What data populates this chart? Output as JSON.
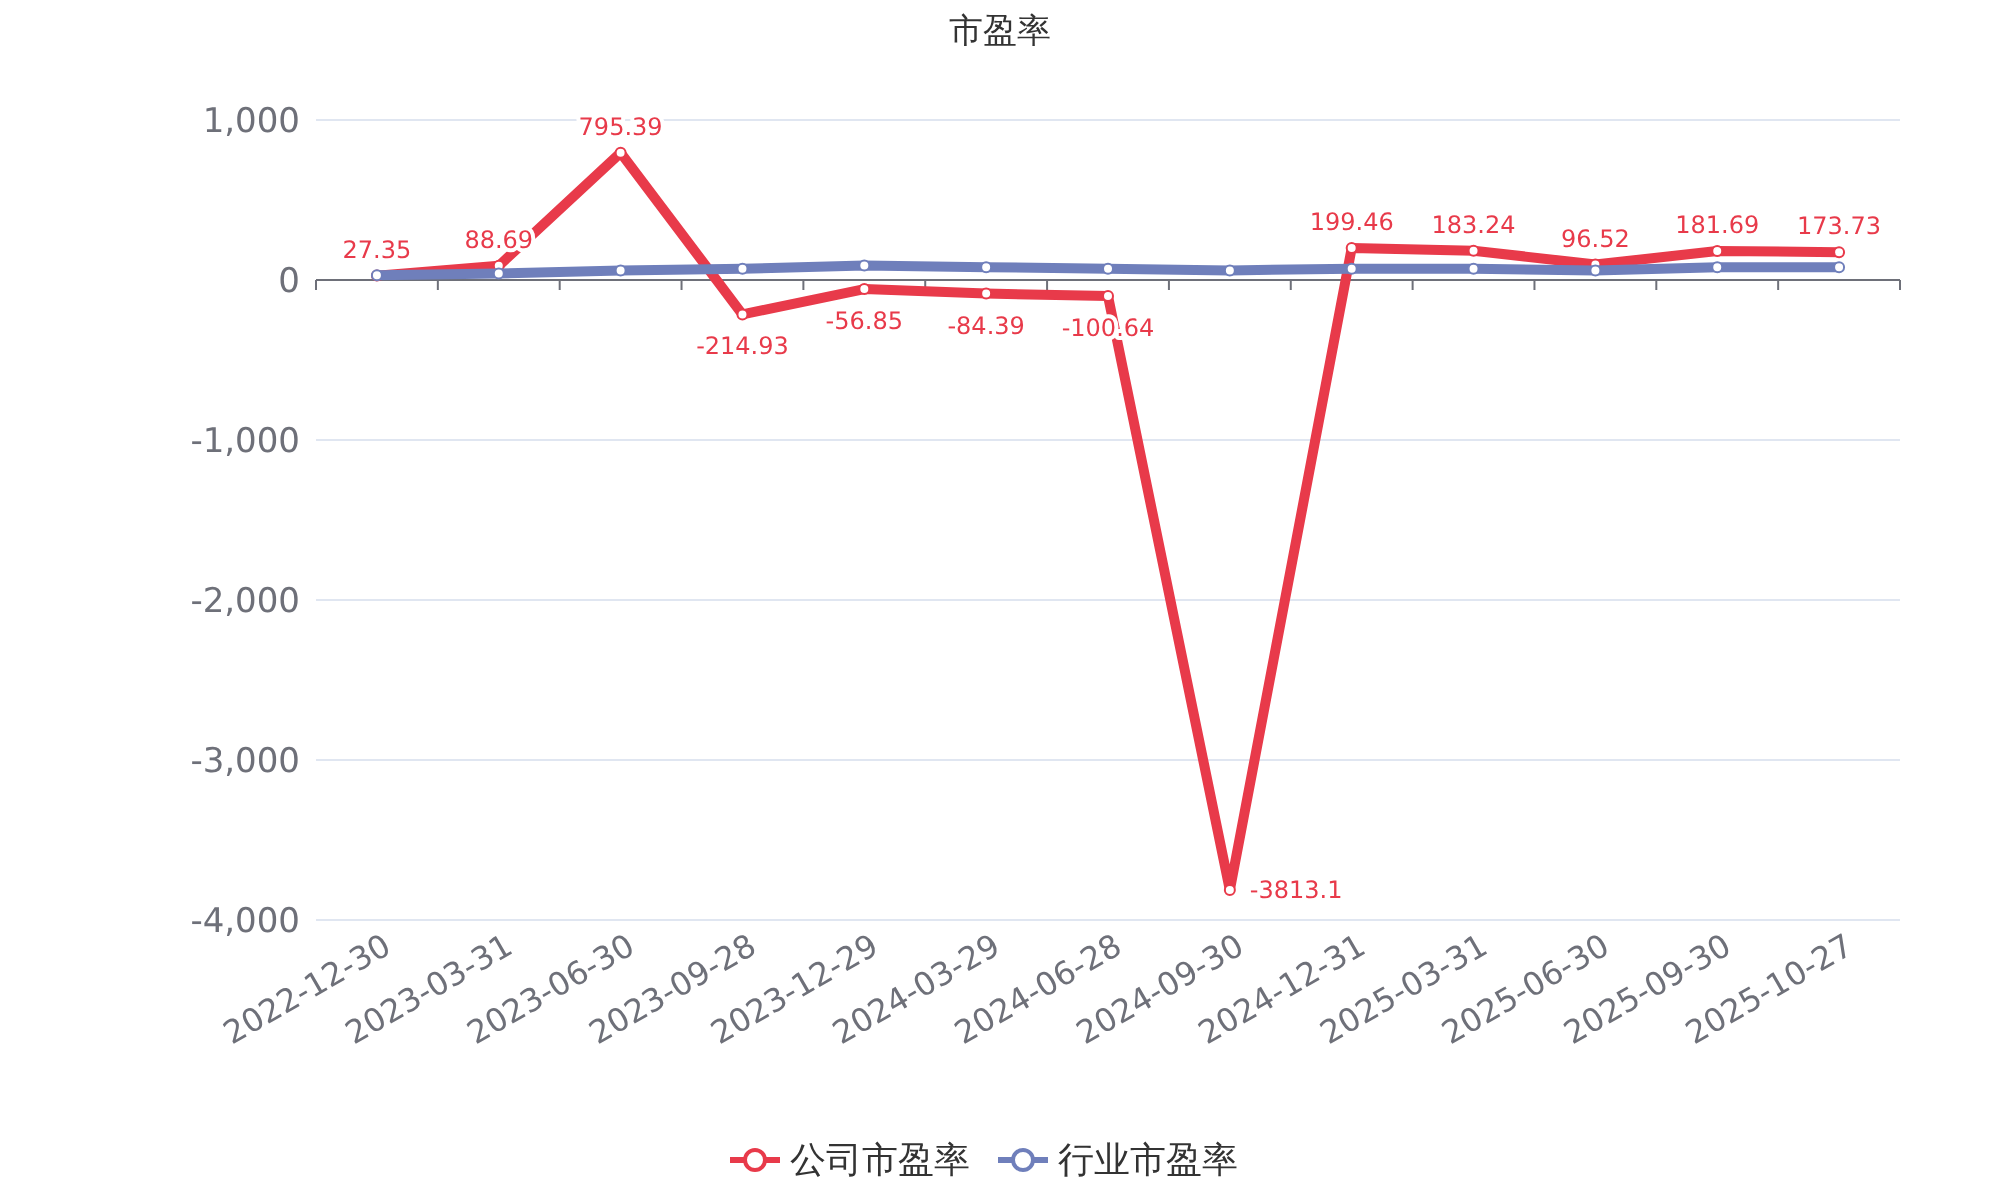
{
  "chart_data": {
    "type": "line",
    "title": "市盈率",
    "categories": [
      "2022-12-30",
      "2023-03-31",
      "2023-06-30",
      "2023-09-28",
      "2023-12-29",
      "2024-03-29",
      "2024-06-28",
      "2024-09-30",
      "2024-12-31",
      "2025-03-31",
      "2025-06-30",
      "2025-09-30",
      "2025-10-27"
    ],
    "series": [
      {
        "name": "公司市盈率",
        "color": "#e83a4a",
        "values": [
          27.35,
          88.69,
          795.39,
          -214.93,
          -56.85,
          -84.39,
          -100.64,
          -3813.1,
          199.46,
          183.24,
          96.52,
          181.69,
          173.73
        ],
        "value_labels": [
          "27.35",
          "88.69",
          "795.39",
          "-214.93",
          "-56.85",
          "-84.39",
          "-100.64",
          "-3813.1",
          "199.46",
          "183.24",
          "96.52",
          "181.69",
          "173.73"
        ]
      },
      {
        "name": "行业市盈率",
        "color": "#6f7fbb",
        "values": [
          30,
          40,
          60,
          70,
          90,
          80,
          70,
          60,
          70,
          70,
          60,
          80,
          80
        ]
      }
    ],
    "ylim": [
      -4000,
      1000
    ],
    "yticks": [
      {
        "value": -4000,
        "label": "-4,000"
      },
      {
        "value": -3000,
        "label": "-3,000"
      },
      {
        "value": -2000,
        "label": "-2,000"
      },
      {
        "value": -1000,
        "label": "-1,000"
      },
      0,
      {
        "value": 1000,
        "label": "1,000"
      }
    ],
    "grid": "y",
    "legend": "bottom",
    "marker": "circle",
    "line_style": "solid"
  }
}
